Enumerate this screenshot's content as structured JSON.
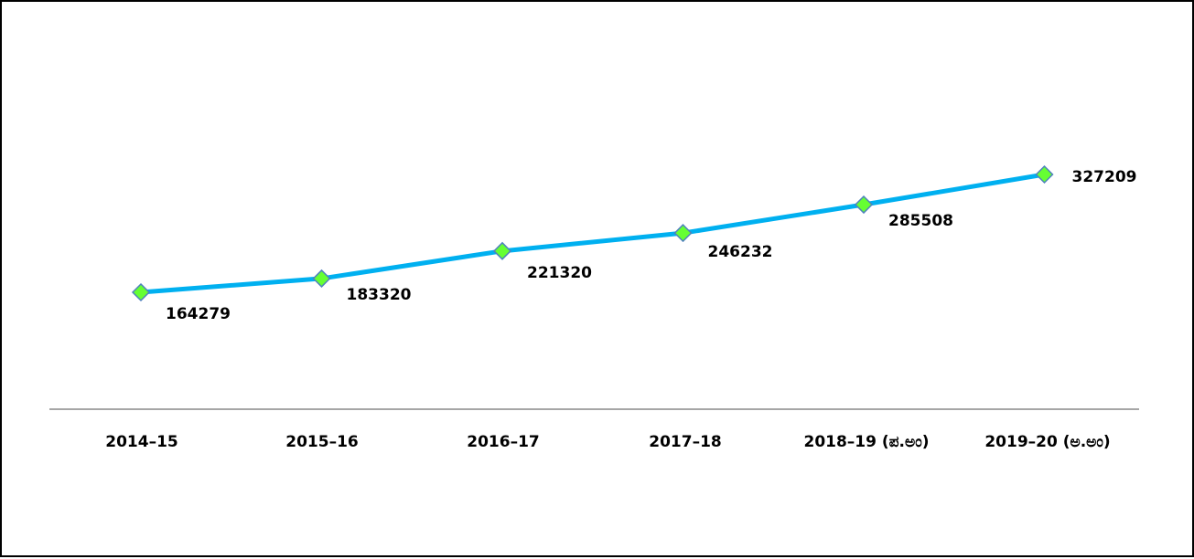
{
  "chart_data": {
    "type": "line",
    "title": "",
    "xlabel": "",
    "ylabel": "",
    "categories": [
      "2014-15",
      "2015-16",
      "2016-17",
      "2017-18",
      "2018-19 (ಪ.ಅಂ)",
      "2019-20 (ಅ.ಅಂ)"
    ],
    "series": [
      {
        "values": [
          164279,
          183320,
          221320,
          246232,
          285508,
          327209
        ],
        "line_color": "#00B0F0",
        "marker": "diamond",
        "marker_fill": "#66FF33",
        "marker_stroke": "#4F81BD"
      }
    ],
    "data_labels": [
      "164279",
      "183320",
      "221320",
      "246232",
      "285508",
      "327209"
    ],
    "grid": false,
    "legend": "none",
    "axis_color": "#A6A6A6"
  }
}
